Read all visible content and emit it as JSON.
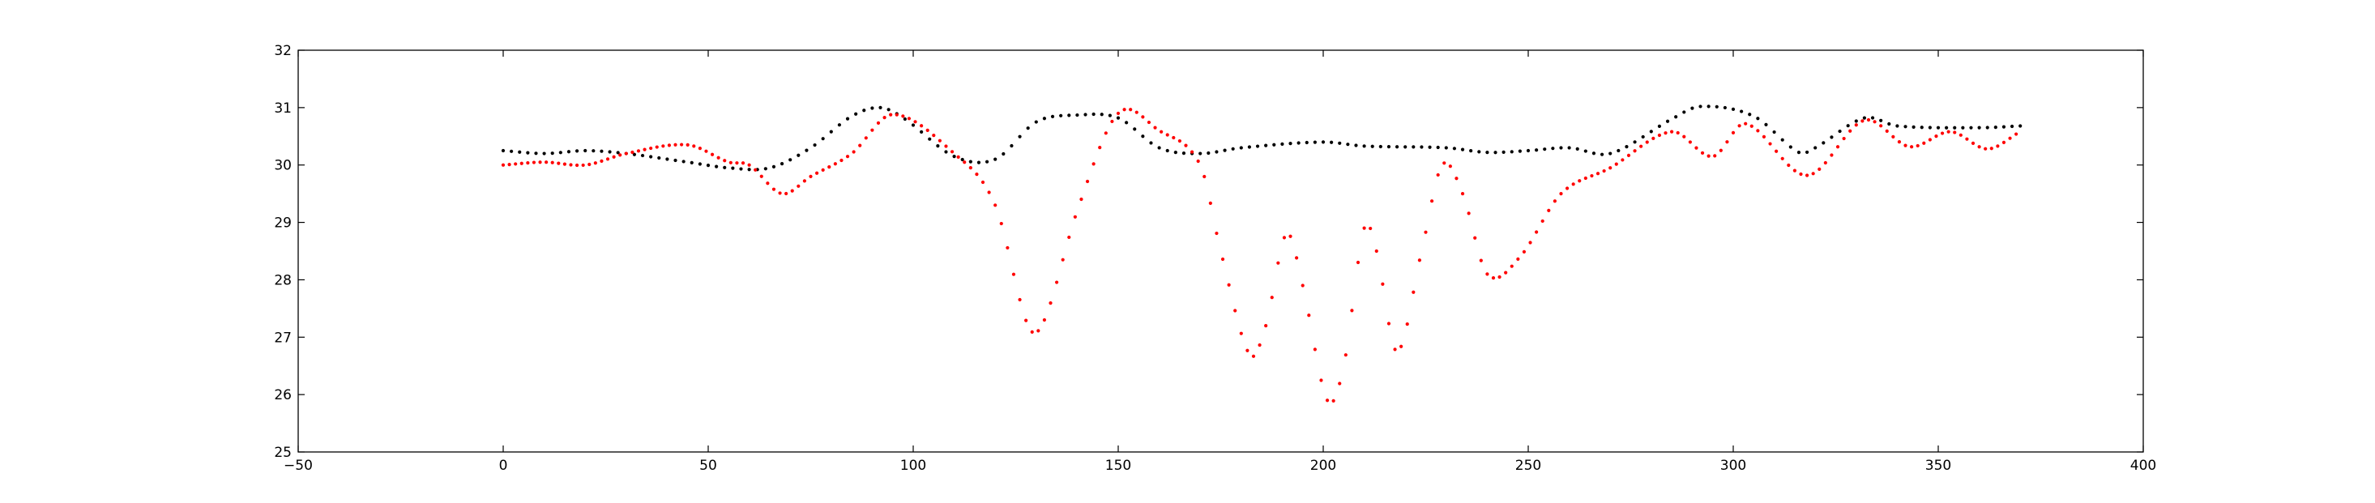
{
  "chart_data": {
    "type": "scatter",
    "title": "",
    "xlabel": "",
    "ylabel": "",
    "xlim": [
      -50,
      400
    ],
    "ylim": [
      25,
      32
    ],
    "xticks": [
      -50,
      0,
      50,
      100,
      150,
      200,
      250,
      300,
      350,
      400
    ],
    "yticks": [
      25,
      26,
      27,
      28,
      29,
      30,
      31,
      32
    ],
    "grid": false,
    "legend": "none",
    "series": [
      {
        "color": "#000000",
        "marker": "dot",
        "x_start": 0,
        "x_end": 370,
        "x_step": 2,
        "keypoints": [
          [
            0,
            30.25
          ],
          [
            10,
            30.2
          ],
          [
            20,
            30.25
          ],
          [
            30,
            30.2
          ],
          [
            45,
            30.05
          ],
          [
            55,
            29.95
          ],
          [
            65,
            29.95
          ],
          [
            75,
            30.3
          ],
          [
            85,
            30.85
          ],
          [
            92,
            31.0
          ],
          [
            98,
            30.8
          ],
          [
            110,
            30.15
          ],
          [
            120,
            30.1
          ],
          [
            130,
            30.75
          ],
          [
            140,
            30.87
          ],
          [
            150,
            30.82
          ],
          [
            160,
            30.3
          ],
          [
            170,
            30.2
          ],
          [
            180,
            30.3
          ],
          [
            200,
            30.4
          ],
          [
            210,
            30.33
          ],
          [
            230,
            30.3
          ],
          [
            240,
            30.22
          ],
          [
            250,
            30.25
          ],
          [
            260,
            30.3
          ],
          [
            270,
            30.2
          ],
          [
            285,
            30.8
          ],
          [
            292,
            31.02
          ],
          [
            305,
            30.85
          ],
          [
            316,
            30.22
          ],
          [
            320,
            30.3
          ],
          [
            332,
            30.82
          ],
          [
            340,
            30.68
          ],
          [
            360,
            30.65
          ],
          [
            370,
            30.68
          ]
        ]
      },
      {
        "color": "#ff0000",
        "marker": "dot",
        "x_start": 0,
        "x_end": 370,
        "x_step": 1.5,
        "keypoints": [
          [
            0,
            30.0
          ],
          [
            10,
            30.05
          ],
          [
            20,
            30.0
          ],
          [
            30,
            30.2
          ],
          [
            45,
            30.35
          ],
          [
            55,
            30.05
          ],
          [
            60,
            30.0
          ],
          [
            68,
            29.5
          ],
          [
            75,
            29.8
          ],
          [
            85,
            30.2
          ],
          [
            95,
            30.88
          ],
          [
            110,
            30.2
          ],
          [
            120,
            29.3
          ],
          [
            128,
            27.2
          ],
          [
            132,
            27.3
          ],
          [
            140,
            29.2
          ],
          [
            150,
            30.9
          ],
          [
            160,
            30.6
          ],
          [
            170,
            30.0
          ],
          [
            175,
            28.5
          ],
          [
            182,
            26.7
          ],
          [
            186,
            27.2
          ],
          [
            191,
            28.8
          ],
          [
            195,
            27.9
          ],
          [
            201,
            25.9
          ],
          [
            205,
            26.5
          ],
          [
            210,
            28.9
          ],
          [
            213,
            28.5
          ],
          [
            218,
            26.75
          ],
          [
            224,
            28.5
          ],
          [
            229,
            30.0
          ],
          [
            234,
            29.5
          ],
          [
            240,
            28.1
          ],
          [
            248,
            28.4
          ],
          [
            258,
            29.5
          ],
          [
            270,
            29.95
          ],
          [
            285,
            30.58
          ],
          [
            295,
            30.15
          ],
          [
            303,
            30.72
          ],
          [
            318,
            29.82
          ],
          [
            332,
            30.78
          ],
          [
            343,
            30.32
          ],
          [
            353,
            30.58
          ],
          [
            362,
            30.28
          ],
          [
            370,
            30.58
          ]
        ]
      }
    ]
  }
}
